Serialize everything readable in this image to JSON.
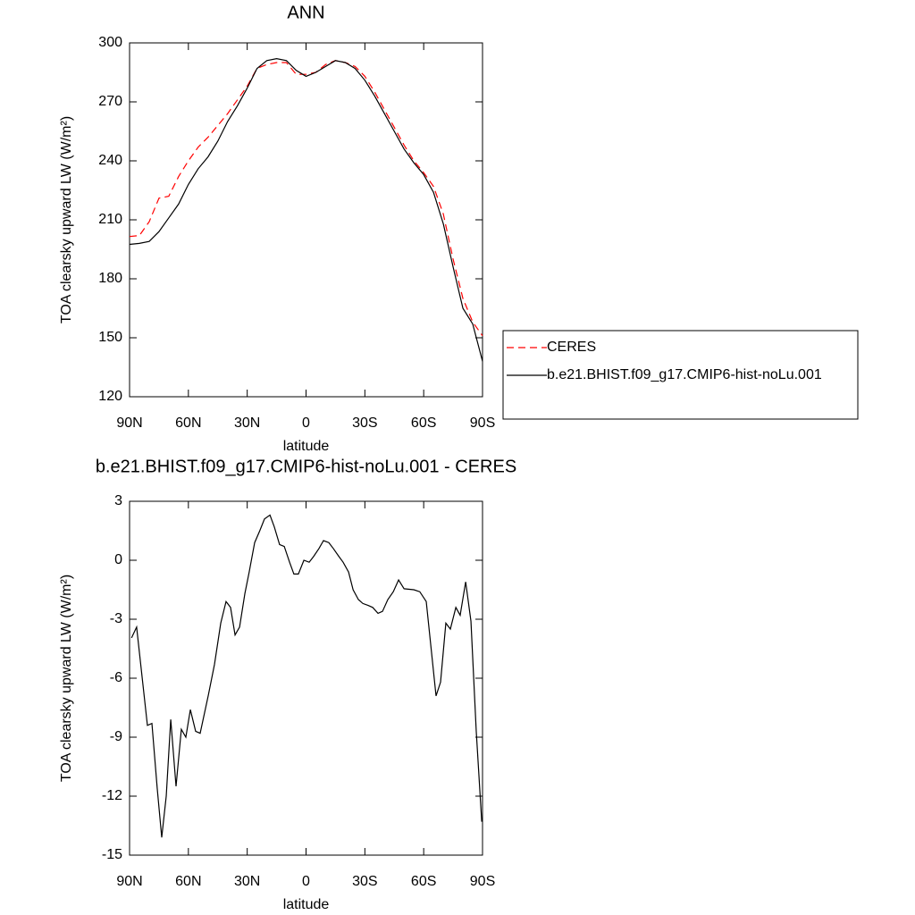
{
  "chart_data": [
    {
      "type": "line",
      "title": "ANN",
      "xlabel": "latitude",
      "ylabel": "TOA clearsky upward LW (W/m²)",
      "x": [
        90,
        85,
        80,
        75,
        70,
        65,
        60,
        55,
        50,
        45,
        40,
        35,
        30,
        25,
        20,
        15,
        10,
        5,
        0,
        -5,
        -10,
        -15,
        -20,
        -25,
        -30,
        -35,
        -40,
        -45,
        -50,
        -55,
        -60,
        -65,
        -70,
        -75,
        -80,
        -85,
        -90
      ],
      "series": [
        {
          "name": "CERES",
          "color": "#ff0000",
          "line_style": "dashed",
          "values": [
            201.5,
            202,
            209,
            221,
            222,
            232,
            240,
            247,
            252,
            258,
            264,
            271,
            278,
            287,
            289,
            290,
            290,
            284,
            284,
            285,
            289,
            291,
            290,
            288,
            283,
            275,
            266,
            257,
            248,
            240,
            234,
            227,
            213,
            190,
            170,
            158,
            151
          ]
        },
        {
          "name": "b.e21.BHIST.f09_g17.CMIP6-hist-noLu.001",
          "color": "#000000",
          "line_style": "solid",
          "values": [
            197.5,
            198,
            199,
            204,
            211,
            218,
            228,
            236,
            242,
            250,
            260,
            268,
            277,
            287,
            291,
            292,
            291,
            286,
            283,
            285,
            288,
            291,
            290,
            287,
            281,
            273,
            264,
            255,
            246,
            239,
            233,
            224,
            208,
            186,
            165,
            157,
            138
          ]
        }
      ],
      "xlim": [
        90,
        -90
      ],
      "ylim": [
        120,
        300
      ],
      "xticks": [
        {
          "value": 90,
          "label": "90N"
        },
        {
          "value": 60,
          "label": "60N"
        },
        {
          "value": 30,
          "label": "30N"
        },
        0,
        {
          "value": -30,
          "label": "30S"
        },
        {
          "value": -60,
          "label": "60S"
        },
        {
          "value": -90,
          "label": "90S"
        }
      ],
      "yticks": [
        120,
        150,
        180,
        210,
        240,
        270,
        300
      ],
      "legend": "right"
    },
    {
      "type": "line",
      "title": "b.e21.BHIST.f09_g17.CMIP6-hist-noLu.001 - CERES",
      "xlabel": "latitude",
      "ylabel": "TOA clearsky upward LW (W/m²)",
      "x": [
        89,
        86.4,
        80.9,
        78.6,
        75.9,
        73.6,
        71.3,
        69,
        66.3,
        63.6,
        61.3,
        59,
        56.3,
        54,
        49.9,
        46.7,
        43.5,
        40.8,
        38.5,
        36.2,
        33.9,
        31.2,
        29,
        26.2,
        23.6,
        21.2,
        18.4,
        16.2,
        13.5,
        11.1,
        8.4,
        6.2,
        3.9,
        1.1,
        -1.6,
        -3.9,
        -6.6,
        -8.9,
        -11.6,
        -13.9,
        -16.7,
        -18.9,
        -21.7,
        -24,
        -26.7,
        -29,
        -31.7,
        -34,
        -36.7,
        -39,
        -41.7,
        -44.5,
        -47.2,
        -50,
        -55,
        -58,
        -61.3,
        -66.3,
        -68.6,
        -71.3,
        -73.6,
        -76.4,
        -78.6,
        -81.4,
        -84.1,
        -86.8,
        -89.6
      ],
      "series": [
        {
          "color": "#000000",
          "line_style": "solid",
          "values": [
            -3.95,
            -3.4,
            -8.4,
            -8.3,
            -11.6,
            -14.1,
            -12,
            -8.1,
            -11.5,
            -8.6,
            -9,
            -7.6,
            -8.7,
            -8.8,
            -6.9,
            -5.3,
            -3.2,
            -2.1,
            -2.4,
            -3.8,
            -3.4,
            -1.7,
            -0.6,
            0.9,
            1.5,
            2.1,
            2.3,
            1.7,
            0.8,
            0.7,
            -0.1,
            -0.7,
            -0.7,
            0,
            -0.1,
            0.2,
            0.6,
            1,
            0.9,
            0.6,
            0.2,
            -0.1,
            -0.6,
            -1.5,
            -2,
            -2.2,
            -2.3,
            -2.4,
            -2.7,
            -2.6,
            -2,
            -1.6,
            -1,
            -1.45,
            -1.5,
            -1.6,
            -2.1,
            -6.9,
            -6.2,
            -3.2,
            -3.5,
            -2.4,
            -2.8,
            -1.1,
            -3.1,
            -8.7,
            -13.3
          ]
        }
      ],
      "xlim": [
        90,
        -90
      ],
      "ylim": [
        -15,
        3
      ],
      "xticks": [
        {
          "value": 90,
          "label": "90N"
        },
        {
          "value": 60,
          "label": "60N"
        },
        {
          "value": 30,
          "label": "30N"
        },
        0,
        {
          "value": -30,
          "label": "30S"
        },
        {
          "value": -60,
          "label": "60S"
        },
        {
          "value": -90,
          "label": "90S"
        }
      ],
      "yticks": [
        -15,
        -12,
        -9,
        -6,
        -3,
        0,
        3
      ]
    }
  ]
}
